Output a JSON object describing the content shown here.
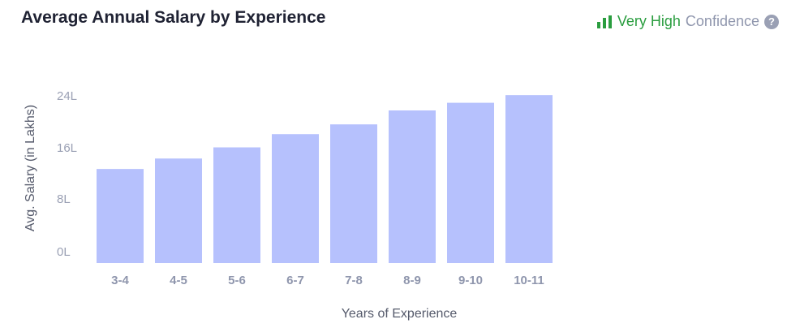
{
  "header": {
    "title": "Average Annual Salary by Experience",
    "confidence_level": "Very High",
    "confidence_word": "Confidence",
    "help_icon": "?"
  },
  "colors": {
    "bar": "#b6c1fd",
    "confidence_green": "#2a9d3f",
    "muted": "#9aa0b4"
  },
  "icons": [
    "bars-signal-icon",
    "question-circle-icon"
  ],
  "chart_data": {
    "type": "bar",
    "title": "Average Annual Salary by Experience",
    "xlabel": "Years of Experience",
    "ylabel": "Avg. Salary (in Lakhs)",
    "categories": [
      "3-4",
      "4-5",
      "5-6",
      "6-7",
      "7-8",
      "8-9",
      "9-10",
      "10-11"
    ],
    "values": [
      13.5,
      15,
      16.6,
      18.5,
      19.9,
      21.9,
      23,
      24.1
    ],
    "ylim": [
      0,
      24
    ],
    "yticks": [
      0,
      8,
      16,
      24
    ],
    "ytick_labels": [
      "0L",
      "8L",
      "16L",
      "24L"
    ],
    "grid": false,
    "legend": "none"
  }
}
